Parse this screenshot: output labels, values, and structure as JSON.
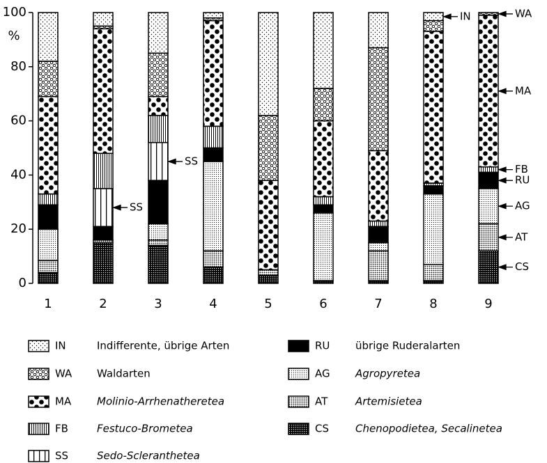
{
  "chart_data": {
    "type": "stacked-bar",
    "y_label": "%",
    "categories": [
      "1",
      "2",
      "3",
      "4",
      "5",
      "6",
      "7",
      "8",
      "9"
    ],
    "ylim": [
      0,
      100
    ],
    "yticks": [
      0,
      20,
      40,
      60,
      80,
      100
    ],
    "series": [
      {
        "name": "IN",
        "label": "Indifferente, übrige Arten",
        "italic": false,
        "pattern": "sparse-dots",
        "color": "#000000",
        "values": [
          18,
          5,
          15,
          2,
          38,
          28,
          13,
          3,
          0
        ]
      },
      {
        "name": "WA",
        "label": "Waldarten",
        "italic": false,
        "pattern": "circles",
        "color": "#000000",
        "values": [
          13,
          1,
          16,
          1,
          24,
          12,
          38,
          4,
          1
        ]
      },
      {
        "name": "MA",
        "label": "Molinio-Arrhenatheretea",
        "italic": true,
        "pattern": "big-dots",
        "color": "#000000",
        "values": [
          36,
          46,
          7,
          39,
          33,
          28,
          26,
          56,
          56
        ]
      },
      {
        "name": "FB",
        "label": "Festuco-Brometea",
        "italic": true,
        "pattern": "vlines",
        "color": "#000000",
        "values": [
          4,
          13,
          10,
          8,
          0,
          3,
          2,
          1,
          2
        ]
      },
      {
        "name": "SS",
        "label": "Sedo-Scleranthetea",
        "italic": true,
        "pattern": "wide-vlines",
        "color": "#000000",
        "values": [
          0,
          14,
          14,
          0,
          0,
          0,
          0,
          0,
          0
        ]
      },
      {
        "name": "RU",
        "label": "übrige Ruderalarten",
        "italic": false,
        "pattern": "solid",
        "color": "#000000",
        "values": [
          9,
          5,
          16,
          5,
          0,
          3,
          6,
          3,
          6
        ]
      },
      {
        "name": "AG",
        "label": "Agropyretea",
        "italic": true,
        "pattern": "fine-dots",
        "color": "#000000",
        "values": [
          11.5,
          0,
          6,
          33,
          0,
          25,
          3,
          26,
          13
        ]
      },
      {
        "name": "AT",
        "label": "Artemisietea",
        "italic": true,
        "pattern": "dots",
        "color": "#000000",
        "values": [
          4.5,
          1,
          2,
          6,
          2,
          0,
          11,
          6,
          10
        ]
      },
      {
        "name": "CS",
        "label": "Chenopodietea, Secalinetea",
        "italic": true,
        "pattern": "crosshatch",
        "color": "#000000",
        "values": [
          4,
          15,
          14,
          6,
          3,
          1,
          1,
          1,
          12
        ]
      }
    ],
    "annotations": [
      {
        "text": "SS",
        "category": "2"
      },
      {
        "text": "SS",
        "category": "3"
      },
      {
        "text": "IN",
        "category": "8"
      },
      {
        "text": "WA",
        "category": "9"
      },
      {
        "text": "MA",
        "category": "9"
      },
      {
        "text": "FB",
        "category": "9"
      },
      {
        "text": "RU",
        "category": "9"
      },
      {
        "text": "AG",
        "category": "9"
      },
      {
        "text": "AT",
        "category": "9"
      },
      {
        "text": "CS",
        "category": "9"
      }
    ]
  }
}
